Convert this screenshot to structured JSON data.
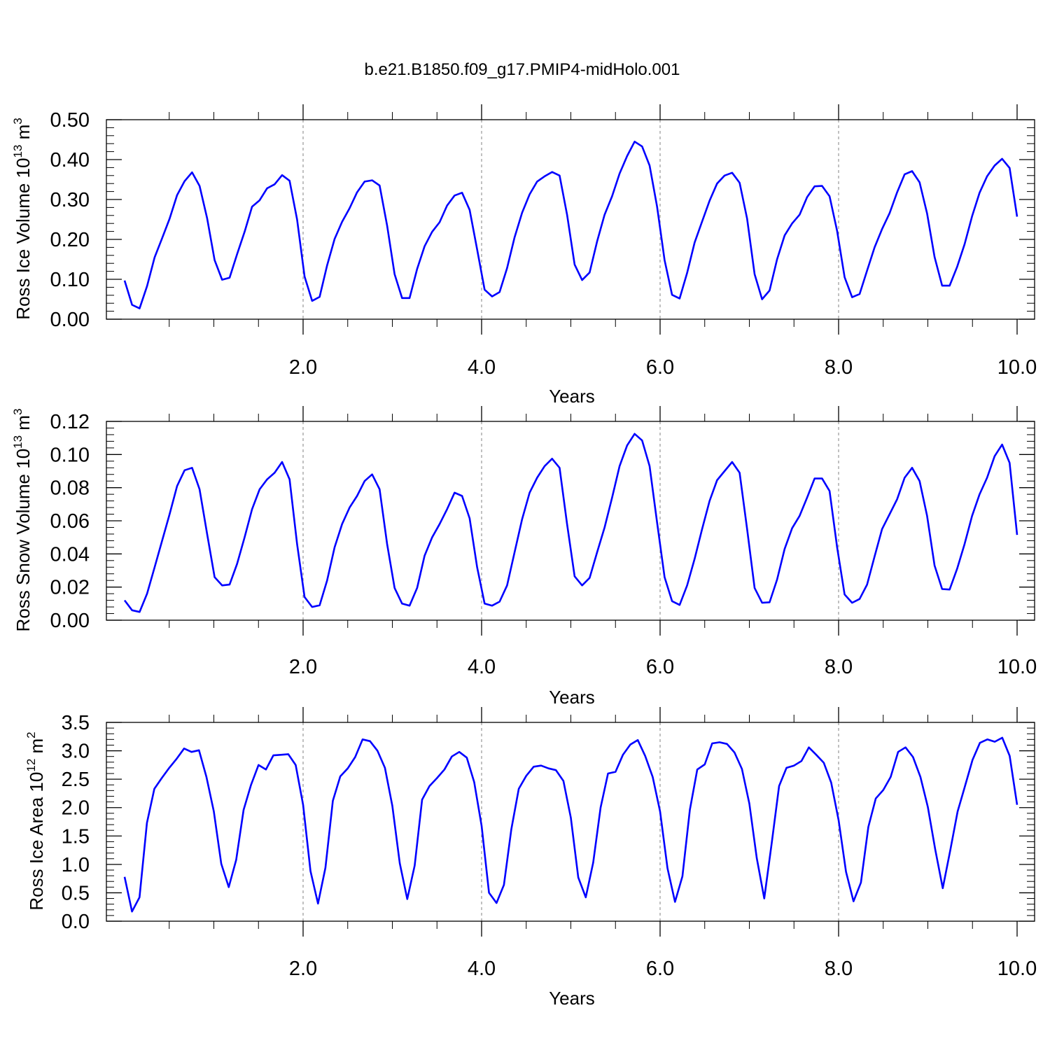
{
  "title": "b.e21.B1850.f09_g17.PMIP4-midHolo.001",
  "colors": {
    "line": "#0000ff",
    "axis": "#000000",
    "grid": "#808080"
  },
  "chart_data": [
    {
      "type": "line",
      "ylabel_main": "Ross Ice Volume 10",
      "ylabel_exp": "13",
      "ylabel_unit": " m",
      "ylabel_unit_exp": "3",
      "xlabel": "Years",
      "xlim": [
        0,
        10
      ],
      "ylim": [
        0,
        0.5
      ],
      "ytick_labels": [
        "0.00",
        "0.10",
        "0.20",
        "0.30",
        "0.40",
        "0.50"
      ],
      "xtick_labels": [
        "2.0",
        "4.0",
        "6.0",
        "8.0",
        "10.0"
      ],
      "grid": "dashed vertical at labeled x ticks",
      "series": [
        {
          "values": [
            0.097,
            0.036,
            0.027,
            0.083,
            0.155,
            0.203,
            0.252,
            0.311,
            0.346,
            0.368,
            0.334,
            0.253,
            0.148,
            0.099,
            0.104,
            0.163,
            0.219,
            0.282,
            0.298,
            0.328,
            0.338,
            0.361,
            0.347,
            0.25,
            0.107,
            0.046,
            0.056,
            0.135,
            0.201,
            0.244,
            0.278,
            0.318,
            0.345,
            0.348,
            0.335,
            0.235,
            0.113,
            0.053,
            0.053,
            0.126,
            0.183,
            0.219,
            0.243,
            0.285,
            0.31,
            0.317,
            0.274,
            0.175,
            0.074,
            0.057,
            0.068,
            0.128,
            0.205,
            0.267,
            0.313,
            0.345,
            0.358,
            0.369,
            0.36,
            0.262,
            0.137,
            0.098,
            0.117,
            0.195,
            0.262,
            0.308,
            0.365,
            0.409,
            0.445,
            0.433,
            0.385,
            0.282,
            0.148,
            0.061,
            0.052,
            0.116,
            0.192,
            0.245,
            0.297,
            0.34,
            0.36,
            0.367,
            0.342,
            0.252,
            0.113,
            0.05,
            0.072,
            0.15,
            0.21,
            0.24,
            0.262,
            0.306,
            0.333,
            0.334,
            0.308,
            0.221,
            0.105,
            0.055,
            0.063,
            0.122,
            0.18,
            0.226,
            0.266,
            0.318,
            0.363,
            0.371,
            0.343,
            0.265,
            0.156,
            0.084,
            0.084,
            0.131,
            0.188,
            0.258,
            0.317,
            0.358,
            0.385,
            0.402,
            0.379,
            0.257
          ]
        }
      ]
    },
    {
      "type": "line",
      "ylabel_main": "Ross Snow Volume 10",
      "ylabel_exp": "13",
      "ylabel_unit": " m",
      "ylabel_unit_exp": "3",
      "xlabel": "Years",
      "xlim": [
        0,
        10
      ],
      "ylim": [
        0,
        0.12
      ],
      "ytick_labels": [
        "0.00",
        "0.02",
        "0.04",
        "0.06",
        "0.08",
        "0.10",
        "0.12"
      ],
      "xtick_labels": [
        "2.0",
        "4.0",
        "6.0",
        "8.0",
        "10.0"
      ],
      "grid": "dashed vertical at labeled x ticks",
      "series": [
        {
          "values": [
            0.012,
            0.006,
            0.005,
            0.016,
            0.032,
            0.048,
            0.064,
            0.081,
            0.0905,
            0.092,
            0.079,
            0.052,
            0.026,
            0.021,
            0.0215,
            0.034,
            0.05,
            0.067,
            0.079,
            0.085,
            0.089,
            0.0955,
            0.085,
            0.046,
            0.014,
            0.008,
            0.009,
            0.024,
            0.044,
            0.058,
            0.068,
            0.075,
            0.084,
            0.088,
            0.079,
            0.046,
            0.0195,
            0.01,
            0.0088,
            0.0195,
            0.039,
            0.05,
            0.058,
            0.067,
            0.077,
            0.075,
            0.0615,
            0.032,
            0.01,
            0.0088,
            0.0112,
            0.021,
            0.041,
            0.061,
            0.077,
            0.086,
            0.093,
            0.0975,
            0.092,
            0.058,
            0.0265,
            0.021,
            0.0255,
            0.041,
            0.056,
            0.074,
            0.093,
            0.1055,
            0.1125,
            0.1085,
            0.093,
            0.059,
            0.026,
            0.0115,
            0.0092,
            0.021,
            0.037,
            0.055,
            0.072,
            0.0845,
            0.09,
            0.0955,
            0.089,
            0.055,
            0.0195,
            0.0105,
            0.0108,
            0.0245,
            0.043,
            0.0555,
            0.063,
            0.074,
            0.0855,
            0.0855,
            0.078,
            0.044,
            0.0155,
            0.0105,
            0.0128,
            0.0215,
            0.0385,
            0.055,
            0.064,
            0.073,
            0.086,
            0.092,
            0.084,
            0.063,
            0.033,
            0.0188,
            0.0185,
            0.031,
            0.046,
            0.063,
            0.076,
            0.086,
            0.099,
            0.106,
            0.095,
            0.0515
          ]
        }
      ]
    },
    {
      "type": "line",
      "ylabel_main": "Ross Ice Area 10",
      "ylabel_exp": "12",
      "ylabel_unit": " m",
      "ylabel_unit_exp": "2",
      "xlabel": "Years",
      "xlim": [
        0,
        10
      ],
      "ylim": [
        0,
        3.5
      ],
      "ytick_labels": [
        "0.0",
        "0.5",
        "1.0",
        "1.5",
        "2.0",
        "2.5",
        "3.0",
        "3.5"
      ],
      "xtick_labels": [
        "2.0",
        "4.0",
        "6.0",
        "8.0",
        "10.0"
      ],
      "grid": "dashed vertical at labeled x ticks",
      "series": [
        {
          "values": [
            0.78,
            0.17,
            0.42,
            1.73,
            2.33,
            2.52,
            2.7,
            2.86,
            3.04,
            2.98,
            3.01,
            2.54,
            1.93,
            1.01,
            0.6,
            1.08,
            1.96,
            2.4,
            2.75,
            2.67,
            2.92,
            2.93,
            2.94,
            2.75,
            2.05,
            0.88,
            0.31,
            0.94,
            2.12,
            2.55,
            2.69,
            2.89,
            3.2,
            3.17,
            3.0,
            2.7,
            2.03,
            1.02,
            0.39,
            0.98,
            2.14,
            2.38,
            2.52,
            2.67,
            2.9,
            2.98,
            2.88,
            2.45,
            1.68,
            0.5,
            0.32,
            0.64,
            1.62,
            2.33,
            2.56,
            2.72,
            2.74,
            2.69,
            2.66,
            2.47,
            1.82,
            0.77,
            0.42,
            1.03,
            2.0,
            2.6,
            2.63,
            2.93,
            3.11,
            3.19,
            2.91,
            2.54,
            1.93,
            0.93,
            0.34,
            0.79,
            1.96,
            2.67,
            2.76,
            3.13,
            3.15,
            3.12,
            2.97,
            2.68,
            2.07,
            1.11,
            0.4,
            1.37,
            2.38,
            2.7,
            2.74,
            2.82,
            3.06,
            2.93,
            2.79,
            2.44,
            1.78,
            0.87,
            0.35,
            0.68,
            1.66,
            2.16,
            2.31,
            2.54,
            2.98,
            3.06,
            2.89,
            2.54,
            2.01,
            1.26,
            0.58,
            1.24,
            1.93,
            2.38,
            2.84,
            3.14,
            3.2,
            3.16,
            3.23,
            2.91,
            2.05
          ]
        }
      ]
    }
  ]
}
